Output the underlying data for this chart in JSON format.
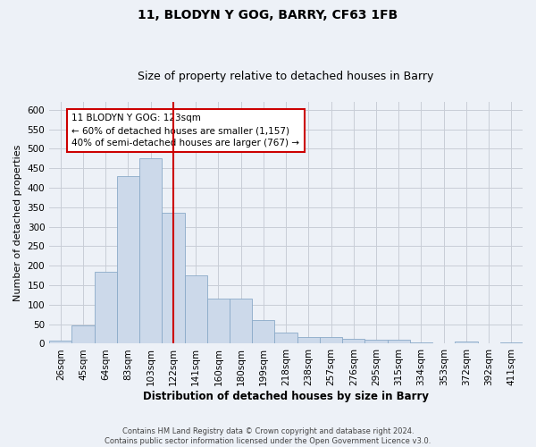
{
  "title1": "11, BLODYN Y GOG, BARRY, CF63 1FB",
  "title2": "Size of property relative to detached houses in Barry",
  "xlabel": "Distribution of detached houses by size in Barry",
  "ylabel": "Number of detached properties",
  "categories": [
    "26sqm",
    "45sqm",
    "64sqm",
    "83sqm",
    "103sqm",
    "122sqm",
    "141sqm",
    "160sqm",
    "180sqm",
    "199sqm",
    "218sqm",
    "238sqm",
    "257sqm",
    "276sqm",
    "295sqm",
    "315sqm",
    "334sqm",
    "353sqm",
    "372sqm",
    "392sqm",
    "411sqm"
  ],
  "values": [
    8,
    48,
    185,
    430,
    475,
    335,
    175,
    115,
    115,
    60,
    28,
    18,
    18,
    13,
    10,
    10,
    4,
    1,
    5,
    1,
    4
  ],
  "bar_color": "#ccd9ea",
  "bar_edge_color": "#8aaac8",
  "vline_x_index": 5,
  "vline_color": "#cc0000",
  "annotation_text": "11 BLODYN Y GOG: 123sqm\n← 60% of detached houses are smaller (1,157)\n40% of semi-detached houses are larger (767) →",
  "annotation_box_color": "#ffffff",
  "annotation_box_edge": "#cc0000",
  "ylim": [
    0,
    620
  ],
  "yticks": [
    0,
    50,
    100,
    150,
    200,
    250,
    300,
    350,
    400,
    450,
    500,
    550,
    600
  ],
  "grid_color": "#c8cdd6",
  "footnote": "Contains HM Land Registry data © Crown copyright and database right 2024.\nContains public sector information licensed under the Open Government Licence v3.0.",
  "bg_color": "#edf1f7",
  "plot_bg": "#edf1f7",
  "title1_fontsize": 10,
  "title2_fontsize": 9,
  "xlabel_fontsize": 8.5,
  "ylabel_fontsize": 8,
  "tick_fontsize": 7.5
}
